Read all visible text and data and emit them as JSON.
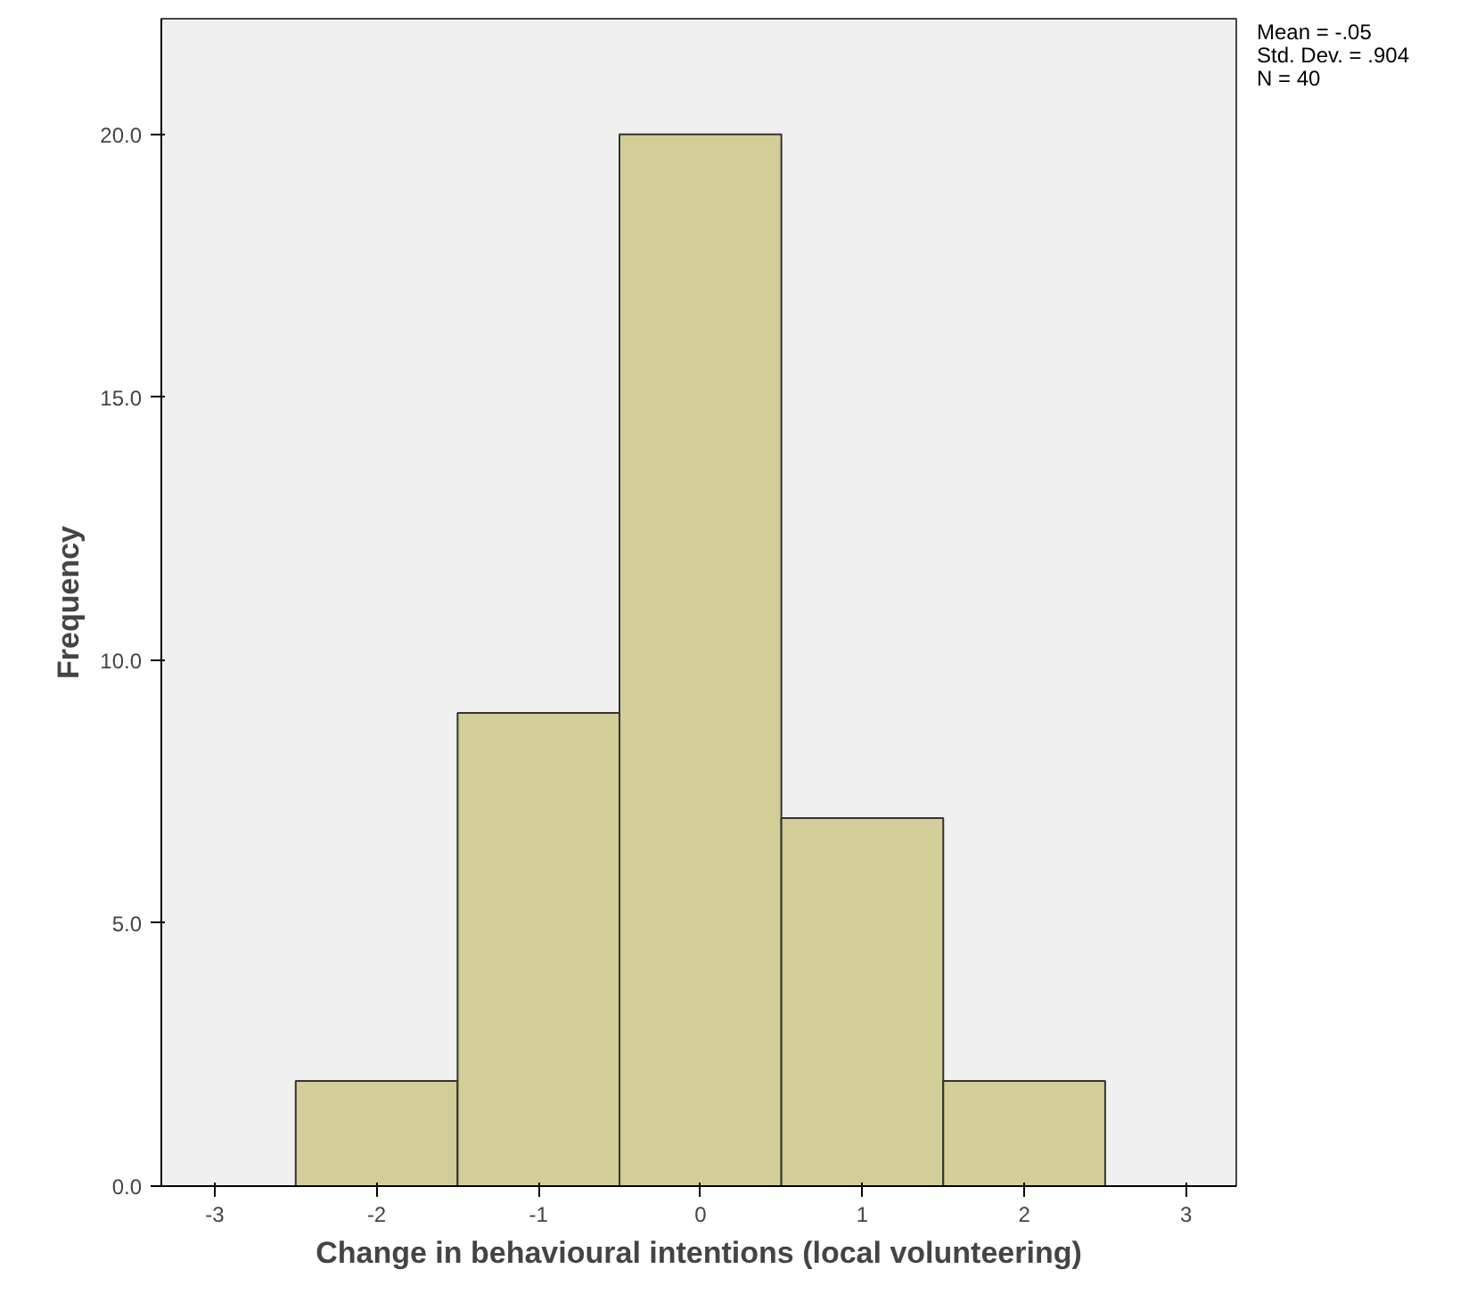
{
  "chart_data": {
    "type": "histogram",
    "xlabel": "Change in behavioural intentions (local volunteering)",
    "ylabel": "Frequency",
    "bins": [
      -2.5,
      -1.5,
      -0.5,
      0.5,
      1.5,
      2.5
    ],
    "values": [
      2,
      9,
      20,
      7,
      2
    ],
    "color": "#d3ce97",
    "xlim": [
      -3.33,
      3.31
    ],
    "xticks": [
      -3,
      -2,
      -1,
      0,
      1,
      2,
      3
    ],
    "ylim": [
      0,
      22.2
    ],
    "yticks": [
      {
        "value": 0,
        "label": "0.0"
      },
      {
        "value": 5,
        "label": "5.0"
      },
      {
        "value": 10,
        "label": "10.0"
      },
      {
        "value": 15,
        "label": "15.0"
      },
      {
        "value": 20,
        "label": "20.0"
      }
    ],
    "grid": false,
    "annotations": [
      "Mean = -.05",
      "Std. Dev. = .904",
      "N = 40"
    ]
  }
}
